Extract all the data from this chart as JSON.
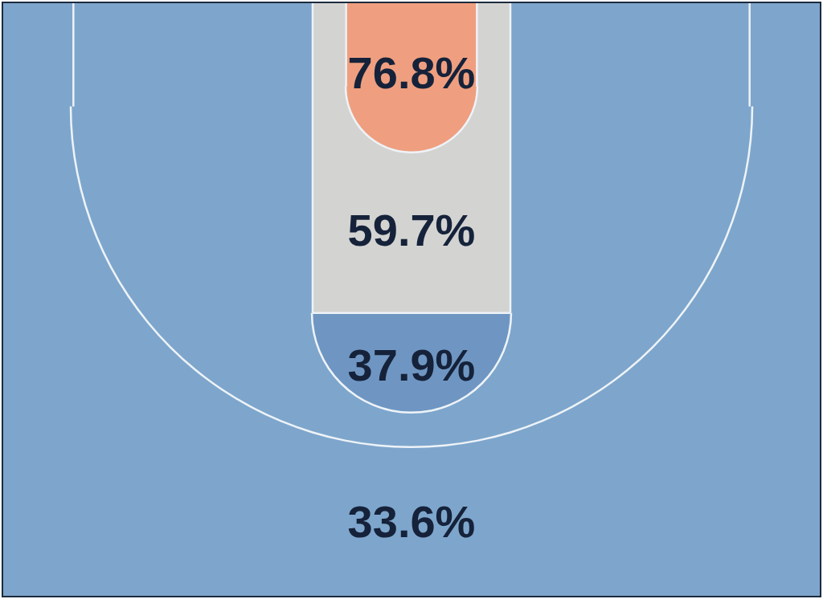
{
  "chart_data": {
    "type": "other",
    "values": [
      76.8,
      59.7,
      37.9,
      33.6
    ],
    "value_labels": [
      "76.8%",
      "59.7%",
      "37.9%",
      "33.6%"
    ],
    "colors": [
      "#ef9f7f",
      "#d3d3d1",
      "#6f96c2",
      "#7ea6cc"
    ]
  }
}
